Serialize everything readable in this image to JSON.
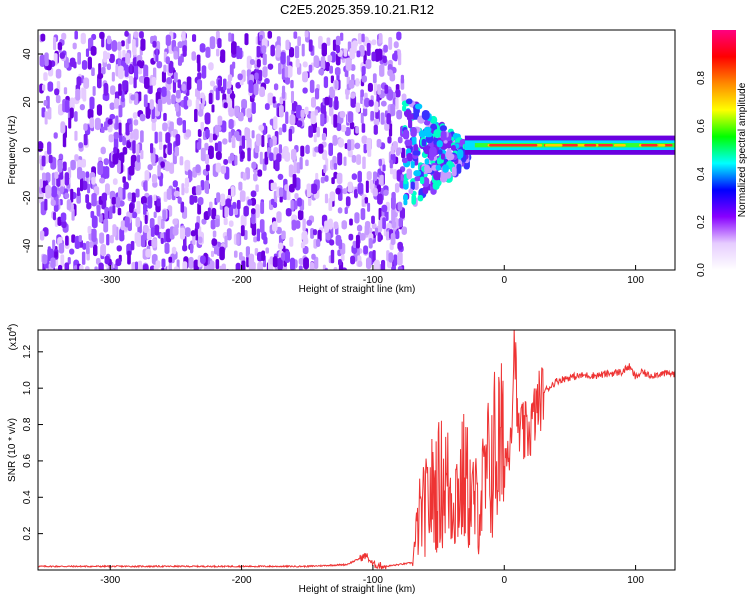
{
  "title": "C2E5.2025.359.10.21.R12",
  "chart_data": [
    {
      "type": "heatmap",
      "xlabel": "Height of straight line (km)",
      "ylabel": "Frequency (Hz)",
      "xlim": [
        -355,
        130
      ],
      "ylim": [
        -50,
        50
      ],
      "xticks": [
        -300,
        -200,
        -100,
        0,
        100
      ],
      "yticks": [
        -40,
        -20,
        0,
        20,
        40
      ],
      "noise_region_x": [
        -355,
        -78
      ],
      "transition_region_x": [
        -78,
        -30
      ],
      "tonal_band": {
        "x": [
          -30,
          130
        ],
        "frequency_hz": 2,
        "half_width_hz": 2
      },
      "colorbar": {
        "label": "Normalized spectral amplitude",
        "ticks": [
          0.0,
          0.2,
          0.4,
          0.6,
          0.8
        ],
        "range": [
          0.0,
          1.0
        ],
        "colors": [
          "#ffffff",
          "#e6ccff",
          "#8800ff",
          "#0000ff",
          "#00ffff",
          "#00ff00",
          "#ffff00",
          "#ff8800",
          "#ff0000",
          "#ff0080"
        ]
      }
    },
    {
      "type": "line",
      "xlabel": "Height of straight line (km)",
      "ylabel": "SNR (10 * v/v)",
      "yscale_label": "(x10",
      "yscale_exp": "4",
      "yscale_close": ")",
      "xlim": [
        -355,
        130
      ],
      "ylim": [
        0,
        1.32
      ],
      "xticks": [
        -300,
        -200,
        -100,
        0,
        100
      ],
      "yticks": [
        0.2,
        0.4,
        0.6,
        0.8,
        1.0,
        1.2
      ],
      "color": "#ee3333",
      "x": [
        -355,
        -300,
        -200,
        -150,
        -120,
        -105,
        -100,
        -90,
        -70,
        -65,
        -60,
        -55,
        -50,
        -45,
        -40,
        -35,
        -30,
        -25,
        -20,
        -15,
        -10,
        -5,
        0,
        3,
        6,
        8,
        10,
        15,
        20,
        25,
        30,
        40,
        50,
        60,
        70,
        80,
        90,
        95,
        100,
        105,
        110,
        120,
        130
      ],
      "values": [
        0.02,
        0.02,
        0.02,
        0.02,
        0.03,
        0.08,
        0.03,
        0.02,
        0.04,
        0.28,
        0.34,
        0.42,
        0.46,
        0.5,
        0.4,
        0.44,
        0.5,
        0.38,
        0.35,
        0.46,
        0.6,
        0.68,
        0.62,
        0.65,
        0.9,
        1.32,
        0.78,
        0.74,
        0.78,
        0.9,
        0.98,
        1.04,
        1.06,
        1.07,
        1.07,
        1.08,
        1.09,
        1.12,
        1.06,
        1.09,
        1.07,
        1.08,
        1.08
      ]
    }
  ]
}
